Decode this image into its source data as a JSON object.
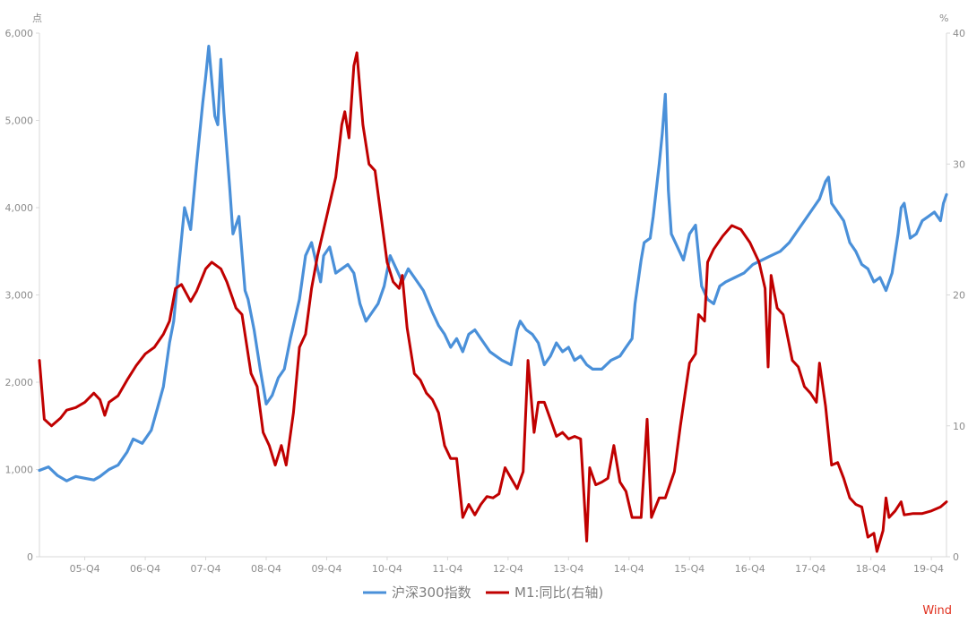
{
  "chart_data": {
    "type": "line",
    "title": "",
    "left_axis_unit": "点",
    "right_axis_unit": "%",
    "ylim_left": [
      0,
      6000
    ],
    "ylim_right": [
      0,
      40
    ],
    "left_ticks": [
      "0",
      "1,000",
      "2,000",
      "3,000",
      "4,000",
      "5,000",
      "6,000"
    ],
    "right_ticks": [
      "0",
      "10",
      "20",
      "30",
      "40"
    ],
    "x_ticks": [
      "05-Q4",
      "06-Q4",
      "07-Q4",
      "08-Q4",
      "09-Q4",
      "10-Q4",
      "11-Q4",
      "12-Q4",
      "13-Q4",
      "14-Q4",
      "15-Q4",
      "16-Q4",
      "17-Q4",
      "18-Q4",
      "19-Q4"
    ],
    "xlim": [
      2005.0,
      2020.0
    ],
    "grid": false,
    "legend_position": "bottom",
    "watermark": "Wind",
    "series": [
      {
        "name": "沪深300指数",
        "axis": "left",
        "color": "#4a90d9",
        "points": [
          [
            2005.0,
            990
          ],
          [
            2005.15,
            1030
          ],
          [
            2005.3,
            930
          ],
          [
            2005.45,
            870
          ],
          [
            2005.6,
            920
          ],
          [
            2005.75,
            900
          ],
          [
            2005.9,
            880
          ],
          [
            2006.0,
            920
          ],
          [
            2006.15,
            1000
          ],
          [
            2006.3,
            1050
          ],
          [
            2006.45,
            1200
          ],
          [
            2006.55,
            1350
          ],
          [
            2006.7,
            1300
          ],
          [
            2006.85,
            1450
          ],
          [
            2006.95,
            1700
          ],
          [
            2007.05,
            1950
          ],
          [
            2007.15,
            2450
          ],
          [
            2007.22,
            2700
          ],
          [
            2007.3,
            3300
          ],
          [
            2007.4,
            4000
          ],
          [
            2007.5,
            3750
          ],
          [
            2007.6,
            4500
          ],
          [
            2007.7,
            5200
          ],
          [
            2007.75,
            5500
          ],
          [
            2007.8,
            5850
          ],
          [
            2007.9,
            5050
          ],
          [
            2007.95,
            4950
          ],
          [
            2008.0,
            5700
          ],
          [
            2008.05,
            5100
          ],
          [
            2008.15,
            4200
          ],
          [
            2008.2,
            3700
          ],
          [
            2008.3,
            3900
          ],
          [
            2008.4,
            3050
          ],
          [
            2008.45,
            2950
          ],
          [
            2008.55,
            2600
          ],
          [
            2008.65,
            2150
          ],
          [
            2008.75,
            1750
          ],
          [
            2008.85,
            1850
          ],
          [
            2008.95,
            2050
          ],
          [
            2009.05,
            2150
          ],
          [
            2009.15,
            2500
          ],
          [
            2009.2,
            2650
          ],
          [
            2009.3,
            2950
          ],
          [
            2009.4,
            3450
          ],
          [
            2009.5,
            3600
          ],
          [
            2009.6,
            3300
          ],
          [
            2009.65,
            3150
          ],
          [
            2009.7,
            3450
          ],
          [
            2009.8,
            3550
          ],
          [
            2009.9,
            3250
          ],
          [
            2010.0,
            3300
          ],
          [
            2010.1,
            3350
          ],
          [
            2010.2,
            3250
          ],
          [
            2010.3,
            2900
          ],
          [
            2010.4,
            2700
          ],
          [
            2010.5,
            2800
          ],
          [
            2010.6,
            2900
          ],
          [
            2010.7,
            3100
          ],
          [
            2010.8,
            3450
          ],
          [
            2010.9,
            3300
          ],
          [
            2011.0,
            3150
          ],
          [
            2011.1,
            3300
          ],
          [
            2011.2,
            3200
          ],
          [
            2011.35,
            3050
          ],
          [
            2011.5,
            2800
          ],
          [
            2011.6,
            2650
          ],
          [
            2011.7,
            2550
          ],
          [
            2011.8,
            2400
          ],
          [
            2011.9,
            2500
          ],
          [
            2012.0,
            2350
          ],
          [
            2012.1,
            2550
          ],
          [
            2012.2,
            2600
          ],
          [
            2012.3,
            2500
          ],
          [
            2012.45,
            2350
          ],
          [
            2012.55,
            2300
          ],
          [
            2012.65,
            2250
          ],
          [
            2012.8,
            2200
          ],
          [
            2012.9,
            2600
          ],
          [
            2012.95,
            2700
          ],
          [
            2013.05,
            2600
          ],
          [
            2013.15,
            2550
          ],
          [
            2013.25,
            2450
          ],
          [
            2013.35,
            2200
          ],
          [
            2013.45,
            2300
          ],
          [
            2013.55,
            2450
          ],
          [
            2013.65,
            2350
          ],
          [
            2013.75,
            2400
          ],
          [
            2013.85,
            2250
          ],
          [
            2013.95,
            2300
          ],
          [
            2014.05,
            2200
          ],
          [
            2014.15,
            2150
          ],
          [
            2014.3,
            2150
          ],
          [
            2014.45,
            2250
          ],
          [
            2014.6,
            2300
          ],
          [
            2014.7,
            2400
          ],
          [
            2014.8,
            2500
          ],
          [
            2014.85,
            2900
          ],
          [
            2014.95,
            3400
          ],
          [
            2015.0,
            3600
          ],
          [
            2015.1,
            3650
          ],
          [
            2015.15,
            3900
          ],
          [
            2015.25,
            4500
          ],
          [
            2015.3,
            4850
          ],
          [
            2015.35,
            5300
          ],
          [
            2015.4,
            4200
          ],
          [
            2015.45,
            3700
          ],
          [
            2015.55,
            3550
          ],
          [
            2015.65,
            3400
          ],
          [
            2015.75,
            3700
          ],
          [
            2015.85,
            3800
          ],
          [
            2015.9,
            3450
          ],
          [
            2015.95,
            3100
          ],
          [
            2016.05,
            2950
          ],
          [
            2016.15,
            2900
          ],
          [
            2016.25,
            3100
          ],
          [
            2016.35,
            3150
          ],
          [
            2016.5,
            3200
          ],
          [
            2016.65,
            3250
          ],
          [
            2016.8,
            3350
          ],
          [
            2016.95,
            3400
          ],
          [
            2017.1,
            3450
          ],
          [
            2017.25,
            3500
          ],
          [
            2017.4,
            3600
          ],
          [
            2017.5,
            3700
          ],
          [
            2017.65,
            3850
          ],
          [
            2017.8,
            4000
          ],
          [
            2017.9,
            4100
          ],
          [
            2018.0,
            4300
          ],
          [
            2018.05,
            4350
          ],
          [
            2018.1,
            4050
          ],
          [
            2018.2,
            3950
          ],
          [
            2018.3,
            3850
          ],
          [
            2018.4,
            3600
          ],
          [
            2018.5,
            3500
          ],
          [
            2018.6,
            3350
          ],
          [
            2018.7,
            3300
          ],
          [
            2018.8,
            3150
          ],
          [
            2018.9,
            3200
          ],
          [
            2019.0,
            3050
          ],
          [
            2019.1,
            3250
          ],
          [
            2019.2,
            3700
          ],
          [
            2019.25,
            4000
          ],
          [
            2019.3,
            4050
          ],
          [
            2019.4,
            3650
          ],
          [
            2019.5,
            3700
          ],
          [
            2019.6,
            3850
          ],
          [
            2019.7,
            3900
          ],
          [
            2019.8,
            3950
          ],
          [
            2019.9,
            3850
          ],
          [
            2019.95,
            4050
          ],
          [
            2020.0,
            4150
          ]
        ]
      },
      {
        "name": "M1:同比(右轴)",
        "axis": "right",
        "color": "#c00000",
        "points": [
          [
            2005.0,
            15.0
          ],
          [
            2005.08,
            10.5
          ],
          [
            2005.2,
            10.0
          ],
          [
            2005.35,
            10.6
          ],
          [
            2005.45,
            11.2
          ],
          [
            2005.6,
            11.4
          ],
          [
            2005.75,
            11.8
          ],
          [
            2005.9,
            12.5
          ],
          [
            2006.0,
            12.0
          ],
          [
            2006.08,
            10.8
          ],
          [
            2006.15,
            11.8
          ],
          [
            2006.3,
            12.3
          ],
          [
            2006.45,
            13.5
          ],
          [
            2006.6,
            14.6
          ],
          [
            2006.75,
            15.5
          ],
          [
            2006.9,
            16.0
          ],
          [
            2007.05,
            17.0
          ],
          [
            2007.15,
            18.0
          ],
          [
            2007.25,
            20.5
          ],
          [
            2007.35,
            20.8
          ],
          [
            2007.5,
            19.5
          ],
          [
            2007.6,
            20.3
          ],
          [
            2007.75,
            22.0
          ],
          [
            2007.85,
            22.5
          ],
          [
            2008.0,
            22.0
          ],
          [
            2008.1,
            21.0
          ],
          [
            2008.25,
            19.0
          ],
          [
            2008.35,
            18.5
          ],
          [
            2008.5,
            14.0
          ],
          [
            2008.6,
            13.0
          ],
          [
            2008.7,
            9.5
          ],
          [
            2008.8,
            8.5
          ],
          [
            2008.9,
            7.0
          ],
          [
            2009.0,
            8.5
          ],
          [
            2009.08,
            7.0
          ],
          [
            2009.2,
            11.0
          ],
          [
            2009.3,
            16.0
          ],
          [
            2009.4,
            17.0
          ],
          [
            2009.5,
            20.5
          ],
          [
            2009.6,
            23.0
          ],
          [
            2009.75,
            26.0
          ],
          [
            2009.9,
            29.0
          ],
          [
            2010.0,
            33.0
          ],
          [
            2010.05,
            34.0
          ],
          [
            2010.12,
            32.0
          ],
          [
            2010.2,
            37.5
          ],
          [
            2010.25,
            38.5
          ],
          [
            2010.35,
            33.0
          ],
          [
            2010.45,
            30.0
          ],
          [
            2010.55,
            29.5
          ],
          [
            2010.65,
            26.0
          ],
          [
            2010.75,
            22.5
          ],
          [
            2010.85,
            21.0
          ],
          [
            2010.95,
            20.5
          ],
          [
            2011.0,
            21.5
          ],
          [
            2011.08,
            17.5
          ],
          [
            2011.2,
            14.0
          ],
          [
            2011.3,
            13.5
          ],
          [
            2011.4,
            12.5
          ],
          [
            2011.5,
            12.0
          ],
          [
            2011.6,
            11.0
          ],
          [
            2011.7,
            8.5
          ],
          [
            2011.8,
            7.5
          ],
          [
            2011.9,
            7.5
          ],
          [
            2012.0,
            3.0
          ],
          [
            2012.1,
            4.0
          ],
          [
            2012.2,
            3.2
          ],
          [
            2012.3,
            4.0
          ],
          [
            2012.4,
            4.6
          ],
          [
            2012.5,
            4.5
          ],
          [
            2012.6,
            4.8
          ],
          [
            2012.7,
            6.8
          ],
          [
            2012.8,
            6.0
          ],
          [
            2012.9,
            5.2
          ],
          [
            2013.0,
            6.5
          ],
          [
            2013.08,
            15.0
          ],
          [
            2013.18,
            9.5
          ],
          [
            2013.25,
            11.8
          ],
          [
            2013.35,
            11.8
          ],
          [
            2013.45,
            10.5
          ],
          [
            2013.55,
            9.2
          ],
          [
            2013.65,
            9.5
          ],
          [
            2013.75,
            9.0
          ],
          [
            2013.85,
            9.2
          ],
          [
            2013.95,
            9.0
          ],
          [
            2014.05,
            1.2
          ],
          [
            2014.1,
            6.8
          ],
          [
            2014.2,
            5.5
          ],
          [
            2014.3,
            5.7
          ],
          [
            2014.4,
            6.0
          ],
          [
            2014.5,
            8.5
          ],
          [
            2014.6,
            5.7
          ],
          [
            2014.7,
            5.0
          ],
          [
            2014.8,
            3.0
          ],
          [
            2014.95,
            3.0
          ],
          [
            2015.05,
            10.5
          ],
          [
            2015.12,
            3.0
          ],
          [
            2015.25,
            4.5
          ],
          [
            2015.35,
            4.5
          ],
          [
            2015.5,
            6.5
          ],
          [
            2015.6,
            10.0
          ],
          [
            2015.75,
            14.8
          ],
          [
            2015.85,
            15.5
          ],
          [
            2015.9,
            18.5
          ],
          [
            2016.0,
            18.0
          ],
          [
            2016.05,
            22.5
          ],
          [
            2016.15,
            23.5
          ],
          [
            2016.3,
            24.5
          ],
          [
            2016.45,
            25.3
          ],
          [
            2016.6,
            25.0
          ],
          [
            2016.75,
            24.0
          ],
          [
            2016.9,
            22.5
          ],
          [
            2017.0,
            20.5
          ],
          [
            2017.05,
            14.5
          ],
          [
            2017.1,
            21.5
          ],
          [
            2017.2,
            19.0
          ],
          [
            2017.3,
            18.5
          ],
          [
            2017.45,
            15.0
          ],
          [
            2017.55,
            14.5
          ],
          [
            2017.65,
            13.0
          ],
          [
            2017.75,
            12.5
          ],
          [
            2017.85,
            11.8
          ],
          [
            2017.9,
            14.8
          ],
          [
            2018.0,
            11.5
          ],
          [
            2018.1,
            7.0
          ],
          [
            2018.2,
            7.2
          ],
          [
            2018.3,
            6.0
          ],
          [
            2018.4,
            4.5
          ],
          [
            2018.5,
            4.0
          ],
          [
            2018.6,
            3.8
          ],
          [
            2018.7,
            1.5
          ],
          [
            2018.8,
            1.8
          ],
          [
            2018.85,
            0.4
          ],
          [
            2018.95,
            2.0
          ],
          [
            2019.0,
            4.5
          ],
          [
            2019.05,
            3.0
          ],
          [
            2019.15,
            3.5
          ],
          [
            2019.25,
            4.2
          ],
          [
            2019.3,
            3.2
          ],
          [
            2019.45,
            3.3
          ],
          [
            2019.6,
            3.3
          ],
          [
            2019.75,
            3.5
          ],
          [
            2019.9,
            3.8
          ],
          [
            2020.0,
            4.2
          ]
        ]
      }
    ]
  }
}
